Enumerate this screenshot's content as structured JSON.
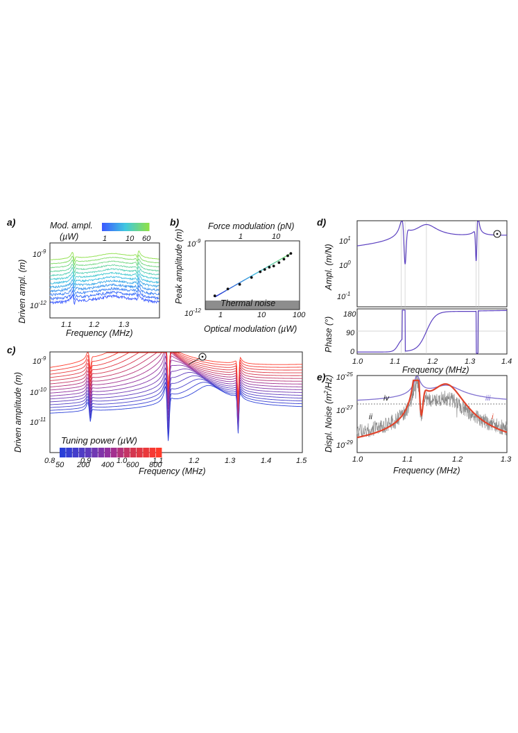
{
  "figure": {
    "panel_labels": [
      "a)",
      "b)",
      "c)",
      "d)",
      "e)"
    ]
  },
  "chart_data": [
    {
      "id": "a",
      "type": "line",
      "xlabel": "Frequency (MHz)",
      "ylabel": "Driven ampl. (m)",
      "xlim": [
        1.05,
        1.39
      ],
      "x_ticks": [
        "1.1",
        "1.2",
        "1.3"
      ],
      "y_ticks": [
        "10^-9",
        "10^-12"
      ],
      "y_scale": "log",
      "colorbar": {
        "title": "Mod. ampl.",
        "unit": "(µW)",
        "ticks": [
          "1",
          "10",
          "60"
        ],
        "colors": [
          "#3b5bff",
          "#40c8e0",
          "#8ee04a"
        ]
      },
      "series_count": 12,
      "resonances_MHz": [
        1.12,
        1.245,
        1.325
      ]
    },
    {
      "id": "b",
      "type": "scatter",
      "title_top": "Force modulation (pN)",
      "top_ticks": [
        "1",
        "10"
      ],
      "xlabel": "Optical modulation (µW)",
      "ylabel": "Peak amplitude (m)",
      "x_scale": "log",
      "y_scale": "log",
      "x_ticks": [
        "1",
        "10",
        "100"
      ],
      "y_ticks": [
        "10^-9",
        "10^-12"
      ],
      "annotation": "Thermal noise",
      "points": {
        "x": [
          0.7,
          1.5,
          3,
          6,
          10,
          13,
          17,
          22,
          30,
          40,
          50,
          60
        ],
        "y": [
          -11.4,
          -11.1,
          -10.9,
          -10.6,
          -10.35,
          -10.25,
          -10.15,
          -10.1,
          -9.95,
          -9.8,
          -9.65,
          -9.55
        ]
      },
      "fit_line": {
        "x": [
          0.7,
          60
        ],
        "y": [
          -11.45,
          -9.55
        ]
      }
    },
    {
      "id": "c",
      "type": "line",
      "xlabel": "Frequency (MHz)",
      "ylabel": "Driven amplitude (m)",
      "xlim": [
        0.8,
        1.5
      ],
      "x_ticks": [
        "0.8",
        "0.9",
        "1.0",
        "1.1",
        "1.2",
        "1.3",
        "1.4",
        "1.5"
      ],
      "y_ticks": [
        "10^-9",
        "10^-10",
        "10^-11"
      ],
      "y_scale": "log",
      "legend": {
        "title": "Tuning power  (µW)",
        "ticks": [
          "50",
          "200",
          "400",
          "600",
          "800"
        ],
        "colors": [
          "#2a3fd8",
          "#5a3cc0",
          "#9b2f9a",
          "#d8364a",
          "#ff3a2a"
        ]
      },
      "marker": "⊙",
      "series_count": 16,
      "main_peak_MHz": {
        "start": 1.24,
        "end": 1.05
      },
      "notches_MHz": [
        0.912,
        1.128,
        1.322
      ]
    },
    {
      "id": "d_top",
      "type": "line",
      "ylabel": "Ampl. (m/N)",
      "y_scale": "log",
      "y_ticks": [
        "10^1",
        "10^0",
        "10^-1"
      ],
      "xlim": [
        1.0,
        1.4
      ],
      "marker": "⊙",
      "peaks_MHz": [
        1.12,
        1.185,
        1.323
      ],
      "antiresonances_MHz": [
        1.128,
        1.318
      ]
    },
    {
      "id": "d_bottom",
      "type": "line",
      "xlabel": "Frequency (MHz)",
      "ylabel": "Phase (°)",
      "xlim": [
        1.0,
        1.4
      ],
      "ylim": [
        0,
        180
      ],
      "x_ticks": [
        "1.0",
        "1.1",
        "1.2",
        "1.3",
        "1.4"
      ],
      "y_ticks": [
        "0",
        "90",
        "180"
      ]
    },
    {
      "id": "e",
      "type": "line",
      "xlabel": "Frequency (MHz)",
      "ylabel": "Displ. Noise (m^2/Hz)",
      "xlim": [
        1.0,
        1.3
      ],
      "x_ticks": [
        "1.0",
        "1.1",
        "1.2",
        "1.3"
      ],
      "y_ticks": [
        "10^-25",
        "10^-27",
        "10^-29"
      ],
      "y_scale": "log",
      "series": [
        {
          "name": "i",
          "color": "#e0442c"
        },
        {
          "name": "ii",
          "color": "#8a8a8a"
        },
        {
          "name": "iii",
          "color": "#7f6fd0"
        },
        {
          "name": "iv",
          "color": "#333333"
        }
      ],
      "peaks_MHz": [
        1.12,
        1.18
      ],
      "notch_MHz": 1.128
    }
  ]
}
